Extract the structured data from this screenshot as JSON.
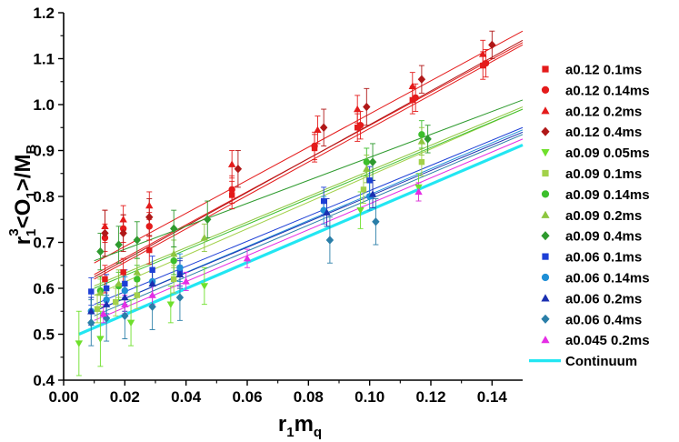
{
  "chart_data": {
    "type": "scatter",
    "xlabel": {
      "main": "r",
      "sub1": "1",
      "main2": "m",
      "sub2": "q"
    },
    "ylabel": {
      "a": "r",
      "a_sub": "1",
      "a_sup": "3",
      "b": "<O",
      "b_sub": "1",
      "c": ">/M",
      "c_sub": "B"
    },
    "xlim": [
      0.0,
      0.15
    ],
    "ylim": [
      0.4,
      1.2
    ],
    "x_ticks": [
      0.0,
      0.02,
      0.04,
      0.06,
      0.08,
      0.1,
      0.12,
      0.14
    ],
    "x_tick_labels": [
      "0.00",
      "0.02",
      "0.04",
      "0.06",
      "0.08",
      "0.10",
      "0.12",
      "0.14"
    ],
    "y_ticks": [
      0.4,
      0.5,
      0.6,
      0.7,
      0.8,
      0.9,
      1.0,
      1.1,
      1.2
    ],
    "y_tick_labels": [
      "0.4",
      "0.5",
      "0.6",
      "0.7",
      "0.8",
      "0.9",
      "1.0",
      "1.1",
      "1.2"
    ],
    "grid": false,
    "legend_position": "right",
    "series": [
      {
        "name": "a0.12 0.1ms",
        "color": "#e41b1b",
        "marker": "square",
        "points": [
          [
            0.0135,
            0.62,
            0.03
          ],
          [
            0.0195,
            0.635,
            0.03
          ],
          [
            0.028,
            0.683,
            0.03
          ],
          [
            0.055,
            0.803,
            0.03
          ],
          [
            0.082,
            0.905,
            0.03
          ],
          [
            0.096,
            0.95,
            0.03
          ],
          [
            0.114,
            1.01,
            0.03
          ],
          [
            0.137,
            1.085,
            0.03
          ]
        ],
        "fit": [
          [
            0.01,
            0.62
          ],
          [
            0.15,
            1.13
          ]
        ]
      },
      {
        "name": "a0.12 0.14ms",
        "color": "#e41b1b",
        "marker": "circle",
        "points": [
          [
            0.0135,
            0.71,
            0.03
          ],
          [
            0.0195,
            0.73,
            0.03
          ],
          [
            0.028,
            0.735,
            0.03
          ],
          [
            0.055,
            0.815,
            0.03
          ],
          [
            0.082,
            0.91,
            0.03
          ],
          [
            0.097,
            0.955,
            0.03
          ],
          [
            0.115,
            1.015,
            0.03
          ],
          [
            0.138,
            1.09,
            0.03
          ]
        ],
        "fit": [
          [
            0.01,
            0.63
          ],
          [
            0.15,
            1.135
          ]
        ]
      },
      {
        "name": "a0.12 0.2ms",
        "color": "#e41b1b",
        "marker": "triangle-up",
        "points": [
          [
            0.0135,
            0.735,
            0.035
          ],
          [
            0.0195,
            0.75,
            0.03
          ],
          [
            0.028,
            0.78,
            0.03
          ],
          [
            0.055,
            0.87,
            0.03
          ],
          [
            0.083,
            0.945,
            0.03
          ],
          [
            0.096,
            0.99,
            0.03
          ],
          [
            0.114,
            1.04,
            0.03
          ],
          [
            0.137,
            1.11,
            0.03
          ]
        ],
        "fit": [
          [
            0.01,
            0.655
          ],
          [
            0.15,
            1.16
          ]
        ]
      },
      {
        "name": "a0.12 0.4ms",
        "color": "#b01818",
        "marker": "diamond",
        "points": [
          [
            0.0135,
            0.72,
            0.05
          ],
          [
            0.0195,
            0.72,
            0.04
          ],
          [
            0.028,
            0.755,
            0.04
          ],
          [
            0.057,
            0.86,
            0.04
          ],
          [
            0.085,
            0.95,
            0.04
          ],
          [
            0.099,
            0.995,
            0.04
          ],
          [
            0.117,
            1.055,
            0.03
          ],
          [
            0.14,
            1.13,
            0.03
          ]
        ],
        "fit": [
          [
            0.01,
            0.625
          ],
          [
            0.15,
            1.14
          ]
        ]
      },
      {
        "name": "a0.09 0.05ms",
        "color": "#6fe02c",
        "marker": "triangle-down",
        "points": [
          [
            0.005,
            0.48,
            0.07
          ],
          [
            0.012,
            0.49,
            0.06
          ],
          [
            0.022,
            0.525,
            0.05
          ],
          [
            0.035,
            0.565,
            0.04
          ],
          [
            0.046,
            0.605,
            0.04
          ],
          [
            0.097,
            0.77,
            0.04
          ],
          [
            0.116,
            0.82,
            0.03
          ]
        ],
        "fit": []
      },
      {
        "name": "a0.09 0.1ms",
        "color": "#a3d14a",
        "marker": "square",
        "points": [
          [
            0.011,
            0.555,
            0.03
          ],
          [
            0.017,
            0.57,
            0.03
          ],
          [
            0.024,
            0.585,
            0.03
          ],
          [
            0.036,
            0.62,
            0.03
          ],
          [
            0.098,
            0.815,
            0.03
          ],
          [
            0.117,
            0.875,
            0.03
          ]
        ],
        "fit": [
          [
            0.01,
            0.585
          ],
          [
            0.15,
            0.99
          ]
        ]
      },
      {
        "name": "a0.09 0.14ms",
        "color": "#3cbf2c",
        "marker": "circle",
        "points": [
          [
            0.012,
            0.595,
            0.03
          ],
          [
            0.018,
            0.605,
            0.03
          ],
          [
            0.024,
            0.62,
            0.03
          ],
          [
            0.036,
            0.66,
            0.03
          ],
          [
            0.099,
            0.875,
            0.03
          ],
          [
            0.117,
            0.935,
            0.03
          ]
        ],
        "fit": [
          [
            0.01,
            0.6
          ],
          [
            0.15,
            0.99
          ]
        ]
      },
      {
        "name": "a0.09 0.2ms",
        "color": "#8dc63f",
        "marker": "triangle-up",
        "points": [
          [
            0.012,
            0.59,
            0.03
          ],
          [
            0.018,
            0.61,
            0.03
          ],
          [
            0.024,
            0.635,
            0.03
          ],
          [
            0.036,
            0.675,
            0.03
          ],
          [
            0.046,
            0.71,
            0.03
          ],
          [
            0.099,
            0.86,
            0.03
          ],
          [
            0.117,
            0.92,
            0.03
          ]
        ],
        "fit": [
          [
            0.01,
            0.605
          ],
          [
            0.15,
            0.995
          ]
        ]
      },
      {
        "name": "a0.09 0.4ms",
        "color": "#2e9a2e",
        "marker": "diamond",
        "points": [
          [
            0.012,
            0.68,
            0.04
          ],
          [
            0.018,
            0.695,
            0.04
          ],
          [
            0.024,
            0.705,
            0.04
          ],
          [
            0.036,
            0.73,
            0.04
          ],
          [
            0.047,
            0.75,
            0.04
          ],
          [
            0.101,
            0.875,
            0.04
          ],
          [
            0.119,
            0.925,
            0.03
          ]
        ],
        "fit": [
          [
            0.01,
            0.66
          ],
          [
            0.15,
            1.01
          ]
        ]
      },
      {
        "name": "a0.06 0.1ms",
        "color": "#1d3fd6",
        "marker": "square",
        "points": [
          [
            0.009,
            0.593,
            0.03
          ],
          [
            0.014,
            0.6,
            0.03
          ],
          [
            0.02,
            0.61,
            0.03
          ],
          [
            0.029,
            0.64,
            0.03
          ],
          [
            0.038,
            0.635,
            0.03
          ],
          [
            0.085,
            0.79,
            0.03
          ],
          [
            0.1,
            0.835,
            0.03
          ]
        ],
        "fit": [
          [
            0.01,
            0.565
          ],
          [
            0.15,
            0.95
          ]
        ]
      },
      {
        "name": "a0.06 0.14ms",
        "color": "#1f8fd6",
        "marker": "circle",
        "points": [
          [
            0.009,
            0.55,
            0.03
          ],
          [
            0.014,
            0.575,
            0.03
          ],
          [
            0.02,
            0.595,
            0.03
          ],
          [
            0.029,
            0.615,
            0.03
          ],
          [
            0.038,
            0.645,
            0.03
          ],
          [
            0.085,
            0.77,
            0.03
          ],
          [
            0.1,
            0.8,
            0.03
          ]
        ],
        "fit": [
          [
            0.01,
            0.55
          ],
          [
            0.15,
            0.945
          ]
        ]
      },
      {
        "name": "a0.06 0.2ms",
        "color": "#1a2fb0",
        "marker": "triangle-up",
        "points": [
          [
            0.009,
            0.55,
            0.03
          ],
          [
            0.014,
            0.565,
            0.03
          ],
          [
            0.02,
            0.58,
            0.03
          ],
          [
            0.029,
            0.61,
            0.03
          ],
          [
            0.038,
            0.63,
            0.03
          ],
          [
            0.086,
            0.765,
            0.03
          ],
          [
            0.101,
            0.805,
            0.03
          ]
        ],
        "fit": [
          [
            0.01,
            0.55
          ],
          [
            0.15,
            0.94
          ]
        ]
      },
      {
        "name": "a0.06 0.4ms",
        "color": "#2a7ea8",
        "marker": "diamond",
        "points": [
          [
            0.009,
            0.525,
            0.05
          ],
          [
            0.014,
            0.535,
            0.05
          ],
          [
            0.02,
            0.54,
            0.05
          ],
          [
            0.029,
            0.56,
            0.05
          ],
          [
            0.038,
            0.58,
            0.05
          ],
          [
            0.087,
            0.705,
            0.05
          ],
          [
            0.102,
            0.745,
            0.05
          ]
        ],
        "fit": [
          [
            0.01,
            0.54
          ],
          [
            0.15,
            0.935
          ]
        ]
      },
      {
        "name": "a0.045 0.2ms",
        "color": "#e52de5",
        "marker": "triangle-up",
        "points": [
          [
            0.013,
            0.545,
            0.02
          ],
          [
            0.02,
            0.565,
            0.02
          ],
          [
            0.029,
            0.585,
            0.02
          ],
          [
            0.04,
            0.615,
            0.02
          ],
          [
            0.06,
            0.665,
            0.02
          ],
          [
            0.116,
            0.81,
            0.02
          ]
        ],
        "fit": [
          [
            0.01,
            0.53
          ],
          [
            0.15,
            0.925
          ]
        ]
      }
    ],
    "continuum": {
      "name": "Continuum",
      "color": "#22e6f2",
      "fit": [
        [
          0.005,
          0.5
        ],
        [
          0.15,
          0.912
        ]
      ]
    }
  }
}
